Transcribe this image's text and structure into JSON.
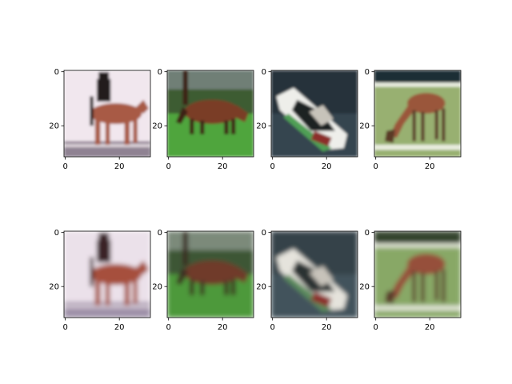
{
  "chart_data": {
    "type": "image-grid",
    "rows": 2,
    "cols": 4,
    "pixel_extent": [
      0,
      31
    ],
    "xticks": [
      0,
      20
    ],
    "yticks": [
      0,
      20
    ],
    "panels": [
      {
        "scene": "rider-horse",
        "palette": {
          "bg": "#f1e7ee",
          "ground": "#8f8292",
          "main": "#a85a44",
          "dark": "#241c1f",
          "accent": "#d8cfd6"
        }
      },
      {
        "scene": "horse-grass",
        "palette": {
          "bg": "#3c5b31",
          "ground": "#4fa53e",
          "main": "#7a3d25",
          "dark": "#3d2418",
          "accent": "#6f7f76"
        }
      },
      {
        "scene": "boat-water",
        "palette": {
          "bg": "#26333b",
          "ground": "#3a4a55",
          "main": "#eeeeea",
          "dark": "#1b2224",
          "accent": "#4f9f54"
        }
      },
      {
        "scene": "deer-field",
        "palette": {
          "bg": "#1f2f34",
          "ground": "#98b071",
          "main": "#9a573b",
          "dark": "#5a3a28",
          "accent": "#e8ecde"
        }
      },
      {
        "scene": "rider-horse",
        "palette": {
          "bg": "#ebe1ea",
          "ground": "#9e90a8",
          "main": "#a6503c",
          "dark": "#3b2426",
          "accent": "#d6cbd6"
        }
      },
      {
        "scene": "horse-grass",
        "palette": {
          "bg": "#3e5634",
          "ground": "#4d993a",
          "main": "#6f3a29",
          "dark": "#3a2b22",
          "accent": "#7c8a7a"
        }
      },
      {
        "scene": "boat-water",
        "palette": {
          "bg": "#36434a",
          "ground": "#46565f",
          "main": "#e5e3dc",
          "dark": "#2a3133",
          "accent": "#5a8a5c"
        }
      },
      {
        "scene": "deer-field",
        "palette": {
          "bg": "#35442d",
          "ground": "#88a866",
          "main": "#96503a",
          "dark": "#5a3a2b",
          "accent": "#dfe4d3"
        }
      }
    ]
  }
}
